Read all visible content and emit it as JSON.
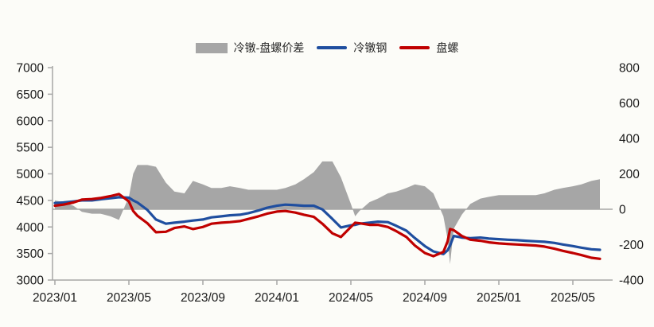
{
  "page": {
    "background": "#FCFCF8"
  },
  "legend": {
    "items": [
      {
        "label": "冷镦-盘螺价差",
        "swatch": "area",
        "color": "#A6A6A6"
      },
      {
        "label": "冷镦钢",
        "swatch": "line",
        "color": "#1F4E9F"
      },
      {
        "label": "盘螺",
        "swatch": "line",
        "color": "#C00000"
      }
    ]
  },
  "chart_data": {
    "type": "line",
    "title": "",
    "grid": false,
    "legend_position": "top",
    "axes": {
      "left": {
        "min": 3000,
        "max": 7000,
        "step": 500,
        "labels": [
          "7000",
          "6500",
          "6000",
          "5500",
          "5000",
          "4500",
          "4000",
          "3500",
          "3000"
        ]
      },
      "right": {
        "min": -400,
        "max": 800,
        "step": 200,
        "labels": [
          "800",
          "600",
          "400",
          "200",
          "0",
          "-200",
          "-400"
        ]
      },
      "x_tick_labels": [
        "2023/01",
        "2023/05",
        "2023/09",
        "2024/01",
        "2024/05",
        "2024/09",
        "2025/01",
        "2025/05"
      ],
      "x_tick_interval_months": 4
    },
    "colors": {
      "spread_area": "#A6A6A6",
      "cold_heading_steel": "#1F4E9F",
      "coiled_rebar": "#C00000",
      "axis_line": "#A6A6A6",
      "tick_label": "#1A1A1A"
    },
    "x": [
      "2023-01-01",
      "2023-01-15",
      "2023-02-01",
      "2023-02-15",
      "2023-03-01",
      "2023-03-15",
      "2023-04-01",
      "2023-04-15",
      "2023-05-01",
      "2023-05-08",
      "2023-05-15",
      "2023-06-01",
      "2023-06-15",
      "2023-07-01",
      "2023-07-15",
      "2023-08-01",
      "2023-08-15",
      "2023-09-01",
      "2023-09-15",
      "2023-10-01",
      "2023-10-15",
      "2023-11-01",
      "2023-11-15",
      "2023-12-01",
      "2023-12-15",
      "2024-01-01",
      "2024-01-15",
      "2024-02-01",
      "2024-02-15",
      "2024-03-01",
      "2024-03-15",
      "2024-04-01",
      "2024-04-15",
      "2024-05-01",
      "2024-05-08",
      "2024-05-15",
      "2024-06-01",
      "2024-06-15",
      "2024-07-01",
      "2024-07-15",
      "2024-08-01",
      "2024-08-15",
      "2024-09-01",
      "2024-09-15",
      "2024-10-01",
      "2024-10-08",
      "2024-10-12",
      "2024-10-18",
      "2024-11-01",
      "2024-11-15",
      "2024-12-01",
      "2024-12-15",
      "2025-01-01",
      "2025-01-15",
      "2025-02-01",
      "2025-02-15",
      "2025-03-01",
      "2025-03-15",
      "2025-04-01",
      "2025-04-15",
      "2025-05-01",
      "2025-05-15",
      "2025-06-01",
      "2025-06-15"
    ],
    "series": [
      {
        "name": "冷镦-盘螺价差",
        "type": "area",
        "axis": "right",
        "color": "#A6A6A6",
        "values": [
          50,
          40,
          20,
          -15,
          -25,
          -25,
          -40,
          -60,
          70,
          200,
          250,
          250,
          240,
          150,
          100,
          90,
          160,
          140,
          120,
          120,
          130,
          120,
          110,
          110,
          110,
          110,
          120,
          140,
          170,
          210,
          270,
          270,
          180,
          30,
          -40,
          -10,
          40,
          60,
          90,
          100,
          120,
          140,
          130,
          90,
          -40,
          -170,
          -310,
          -110,
          -30,
          30,
          60,
          70,
          80,
          80,
          80,
          80,
          80,
          90,
          110,
          120,
          130,
          140,
          160,
          170
        ]
      },
      {
        "name": "冷镦钢",
        "type": "line",
        "axis": "left",
        "color": "#1F4E9F",
        "values": [
          4450,
          4460,
          4480,
          4500,
          4500,
          4520,
          4540,
          4560,
          4550,
          4500,
          4460,
          4320,
          4140,
          4060,
          4080,
          4100,
          4120,
          4140,
          4180,
          4200,
          4220,
          4230,
          4260,
          4310,
          4360,
          4400,
          4420,
          4410,
          4400,
          4400,
          4330,
          4150,
          3990,
          4030,
          4040,
          4060,
          4080,
          4100,
          4090,
          4020,
          3930,
          3790,
          3640,
          3540,
          3490,
          3560,
          3650,
          3830,
          3800,
          3790,
          3800,
          3780,
          3770,
          3760,
          3750,
          3740,
          3730,
          3720,
          3700,
          3670,
          3640,
          3610,
          3580,
          3570
        ]
      },
      {
        "name": "盘螺",
        "type": "line",
        "axis": "left",
        "color": "#C00000",
        "values": [
          4400,
          4420,
          4460,
          4515,
          4525,
          4545,
          4580,
          4620,
          4480,
          4300,
          4210,
          4070,
          3900,
          3910,
          3980,
          4010,
          3960,
          4000,
          4060,
          4080,
          4090,
          4110,
          4150,
          4200,
          4250,
          4290,
          4300,
          4270,
          4230,
          4190,
          4060,
          3880,
          3810,
          4000,
          4080,
          4070,
          4040,
          4040,
          4000,
          3920,
          3810,
          3650,
          3510,
          3450,
          3530,
          3730,
          3960,
          3940,
          3830,
          3760,
          3740,
          3710,
          3690,
          3680,
          3670,
          3660,
          3650,
          3630,
          3590,
          3550,
          3510,
          3470,
          3420,
          3400
        ]
      }
    ]
  }
}
